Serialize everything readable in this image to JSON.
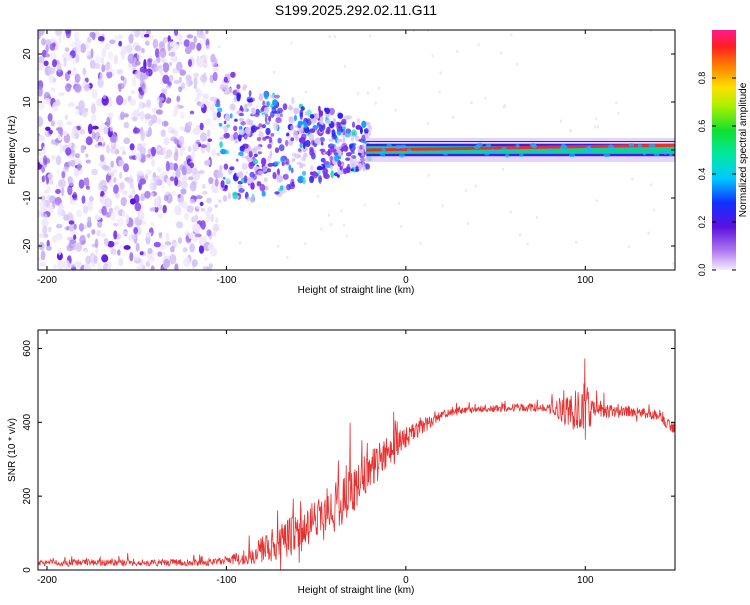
{
  "title": "S199.2025.292.02.11.G11",
  "colors": {
    "snr_line": "#e8302f",
    "carrier": "#e8302f",
    "axis": "#000000",
    "scatter_dark": "#5a10e0",
    "scatter_light": "#c9b4f5"
  },
  "chart_data": [
    {
      "type": "heatmap",
      "title": "",
      "xlabel": "Height of straight line (km)",
      "ylabel": "Frequency (Hz)",
      "xlim": [
        -205,
        150
      ],
      "ylim": [
        -25,
        25
      ],
      "x_ticks": [
        -200,
        -100,
        0,
        100
      ],
      "y_ticks": [
        -20,
        -10,
        0,
        10,
        20
      ],
      "carrier": {
        "x_start": -22,
        "x_end": 150,
        "freq_start": 0,
        "freq_end": 1
      },
      "regions": [
        {
          "x_range": [
            -205,
            -105
          ],
          "freq_range": [
            -25,
            25
          ],
          "density": "high",
          "amplitude": "low"
        },
        {
          "x_range": [
            -105,
            -20
          ],
          "freq_range": [
            -12,
            12
          ],
          "density": "medium",
          "amplitude": "medium"
        },
        {
          "x_range": [
            -20,
            150
          ],
          "freq_range": [
            -2,
            3
          ],
          "density": "concentrated",
          "amplitude": "high"
        }
      ],
      "colorbar": {
        "label": "Normalized spectral amplitude",
        "ticks": [
          "0.0",
          "0.2",
          "0.4",
          "0.6",
          "0.8"
        ],
        "range": [
          0,
          1
        ]
      }
    },
    {
      "type": "line",
      "title": "",
      "xlabel": "Height of straight line (km)",
      "ylabel": "SNR (10 * v/v)",
      "xlim": [
        -205,
        150
      ],
      "ylim": [
        0,
        650
      ],
      "x_ticks": [
        -200,
        -100,
        0,
        100
      ],
      "y_ticks": [
        0,
        200,
        400,
        600
      ],
      "series": [
        {
          "name": "SNR",
          "x": [
            -205,
            -150,
            -110,
            -100,
            -90,
            -80,
            -70,
            -60,
            -50,
            -40,
            -30,
            -20,
            -10,
            0,
            10,
            20,
            30,
            40,
            60,
            80,
            95,
            100,
            105,
            120,
            140,
            150
          ],
          "mean": [
            20,
            20,
            20,
            25,
            35,
            55,
            75,
            100,
            130,
            170,
            210,
            270,
            320,
            360,
            390,
            420,
            430,
            435,
            440,
            440,
            430,
            420,
            430,
            430,
            420,
            380
          ],
          "spread": [
            18,
            18,
            18,
            20,
            40,
            80,
            100,
            120,
            130,
            140,
            130,
            110,
            90,
            60,
            40,
            25,
            20,
            20,
            20,
            25,
            120,
            180,
            40,
            30,
            30,
            30
          ]
        }
      ]
    }
  ]
}
